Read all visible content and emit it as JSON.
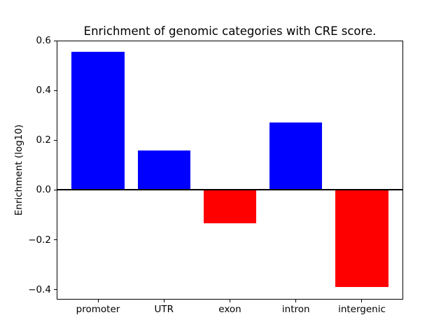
{
  "figure": {
    "background": "#ffffff"
  },
  "chart_data": {
    "type": "bar",
    "title": "Enrichment of genomic categories with CRE score.",
    "ylabel": "Enrichment (log10)",
    "xlabel": "",
    "categories": [
      "promoter",
      "UTR",
      "exon",
      "intron",
      "intergenic"
    ],
    "values": [
      0.555,
      0.158,
      -0.135,
      0.27,
      -0.39
    ],
    "positive_color": "#0000ff",
    "negative_color": "#ff0000",
    "axis_color": "#000000",
    "text_color": "#000000",
    "ylim": [
      -0.44,
      0.6
    ],
    "yticks": {
      "values": [
        0.6,
        0.4,
        0.2,
        0.0,
        -0.2,
        -0.4
      ],
      "labels": [
        "0.6",
        "0.4",
        "0.2",
        "0.0",
        "−0.2",
        "−0.4"
      ]
    },
    "zero_line": true,
    "grid": false,
    "legend": "none"
  }
}
